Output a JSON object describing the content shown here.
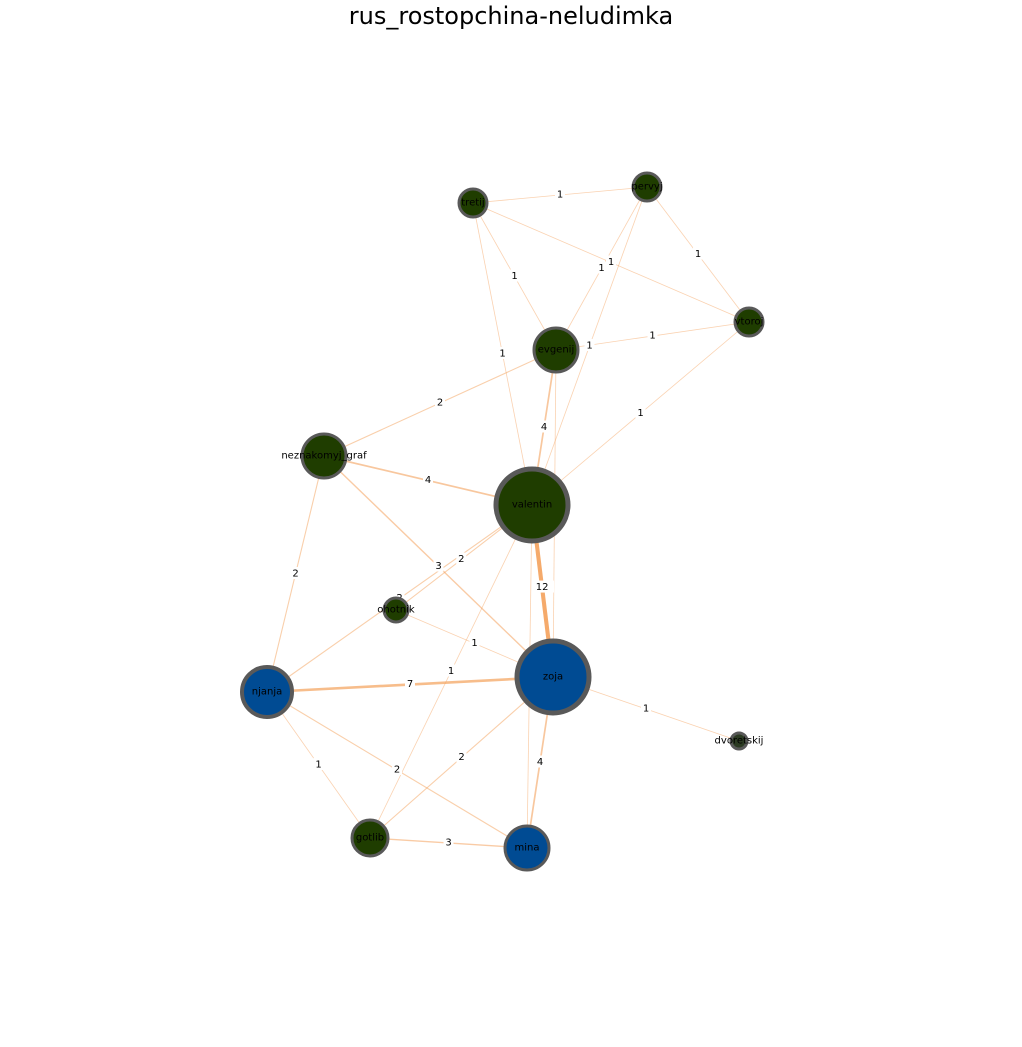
{
  "title": "rus_rostopchina-neludimka",
  "colors": {
    "edge": "#f4a460",
    "node_ring": "#595959",
    "node_female": "#004b93",
    "node_male": "#1f3d00",
    "node_small": "#2b3a22"
  },
  "nodes": [
    {
      "id": "tretij",
      "label": "tretij",
      "group": "male"
    },
    {
      "id": "pervyj",
      "label": "pervyj",
      "group": "male"
    },
    {
      "id": "vtoroj",
      "label": "vtoroj",
      "group": "male"
    },
    {
      "id": "evgenij",
      "label": "evgenij",
      "group": "male"
    },
    {
      "id": "neznakomyj_graf",
      "label": "neznakomyj_graf",
      "group": "male"
    },
    {
      "id": "valentin",
      "label": "valentin",
      "group": "male"
    },
    {
      "id": "ohotnik",
      "label": "ohotnik",
      "group": "male"
    },
    {
      "id": "zoja",
      "label": "zoja",
      "group": "female"
    },
    {
      "id": "njanja",
      "label": "njanja",
      "group": "female"
    },
    {
      "id": "dvoretskij",
      "label": "dvoretskij",
      "group": "male"
    },
    {
      "id": "gotlib",
      "label": "gotlib",
      "group": "male"
    },
    {
      "id": "mina",
      "label": "mina",
      "group": "female"
    }
  ],
  "edges": [
    {
      "source": "tretij",
      "target": "pervyj",
      "weight": 1
    },
    {
      "source": "tretij",
      "target": "evgenij",
      "weight": 1
    },
    {
      "source": "tretij",
      "target": "valentin",
      "weight": 1
    },
    {
      "source": "tretij",
      "target": "vtoroj",
      "weight": 1
    },
    {
      "source": "pervyj",
      "target": "vtoroj",
      "weight": 1
    },
    {
      "source": "pervyj",
      "target": "evgenij",
      "weight": 1
    },
    {
      "source": "pervyj",
      "target": "valentin",
      "weight": 1
    },
    {
      "source": "evgenij",
      "target": "vtoroj",
      "weight": 1
    },
    {
      "source": "valentin",
      "target": "vtoroj",
      "weight": 1
    },
    {
      "source": "neznakomyj_graf",
      "target": "evgenij",
      "weight": 2
    },
    {
      "source": "evgenij",
      "target": "valentin",
      "weight": 4
    },
    {
      "source": "neznakomyj_graf",
      "target": "valentin",
      "weight": 4
    },
    {
      "source": "neznakomyj_graf",
      "target": "zoja",
      "weight": 3
    },
    {
      "source": "neznakomyj_graf",
      "target": "njanja",
      "weight": 2
    },
    {
      "source": "valentin",
      "target": "ohotnik",
      "weight": 2
    },
    {
      "source": "valentin",
      "target": "njanja",
      "weight": 2
    },
    {
      "source": "valentin",
      "target": "zoja",
      "weight": 12
    },
    {
      "source": "evgenij",
      "target": "zoja",
      "weight": 1
    },
    {
      "source": "valentin",
      "target": "gotlib",
      "weight": 1
    },
    {
      "source": "valentin",
      "target": "mina",
      "weight": 1
    },
    {
      "source": "ohotnik",
      "target": "zoja",
      "weight": 1
    },
    {
      "source": "njanja",
      "target": "zoja",
      "weight": 7
    },
    {
      "source": "zoja",
      "target": "dvoretskij",
      "weight": 1
    },
    {
      "source": "njanja",
      "target": "gotlib",
      "weight": 1
    },
    {
      "source": "njanja",
      "target": "mina",
      "weight": 2
    },
    {
      "source": "zoja",
      "target": "gotlib",
      "weight": 2
    },
    {
      "source": "zoja",
      "target": "mina",
      "weight": 4
    },
    {
      "source": "gotlib",
      "target": "mina",
      "weight": 3
    }
  ]
}
